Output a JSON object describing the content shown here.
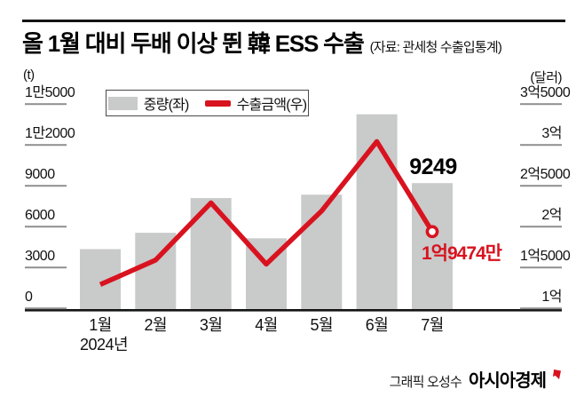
{
  "header": {
    "title": "올 1월 대비 두배 이상 뛴 韓 ESS 수출",
    "source": "(자료: 관세청 수출입통계)"
  },
  "legend": {
    "items": [
      {
        "label": "중량(좌)",
        "swatch": "bar",
        "color": "#c9caca"
      },
      {
        "label": "수출금액(우)",
        "swatch": "line",
        "color": "#d8131f"
      }
    ]
  },
  "chart_data": {
    "type": "bar",
    "subtype": "bar+line dual-axis",
    "categories": [
      "1월",
      "2월",
      "3월",
      "4월",
      "5월",
      "6월",
      "7월"
    ],
    "x_sub_label": "2024년",
    "left_axis": {
      "unit": "(t)",
      "ticks": [
        {
          "label": "1만5000",
          "value": 15000
        },
        {
          "label": "1만2000",
          "value": 12000
        },
        {
          "label": "9000",
          "value": 9000
        },
        {
          "label": "6000",
          "value": 6000
        },
        {
          "label": "3000",
          "value": 3000
        },
        {
          "label": "0",
          "value": 0
        }
      ],
      "range": [
        0,
        15000
      ]
    },
    "right_axis": {
      "unit": "(달러)",
      "value_unit": "만달러",
      "ticks": [
        {
          "label": "3억5000",
          "value": 35000
        },
        {
          "label": "3억",
          "value": 30000
        },
        {
          "label": "2억5000",
          "value": 25000
        },
        {
          "label": "2억",
          "value": 20000
        },
        {
          "label": "1억5000",
          "value": 15000
        },
        {
          "label": "1억",
          "value": 10000
        }
      ],
      "range": [
        10000,
        35000
      ]
    },
    "series": [
      {
        "name": "중량(좌)",
        "type": "bar",
        "axis": "left",
        "color": "#c9caca",
        "values": [
          4400,
          5600,
          8150,
          5200,
          8400,
          14300,
          9249
        ]
      },
      {
        "name": "수출금액(우)",
        "type": "line",
        "axis": "right",
        "color": "#d8131f",
        "values": [
          13000,
          16000,
          23000,
          15500,
          22000,
          30500,
          19474
        ],
        "last_point_marker": "open-circle"
      }
    ],
    "annotations": [
      {
        "text": "9249",
        "color": "#000000",
        "refers_to": "7월 중량"
      },
      {
        "text": "1억9474만",
        "color": "#d8131f",
        "refers_to": "7월 수출금액"
      }
    ],
    "grid": false,
    "legend_position": "top-left-inside"
  },
  "footer": {
    "credit": "그래픽 오성수",
    "brand": "아시아경제"
  }
}
